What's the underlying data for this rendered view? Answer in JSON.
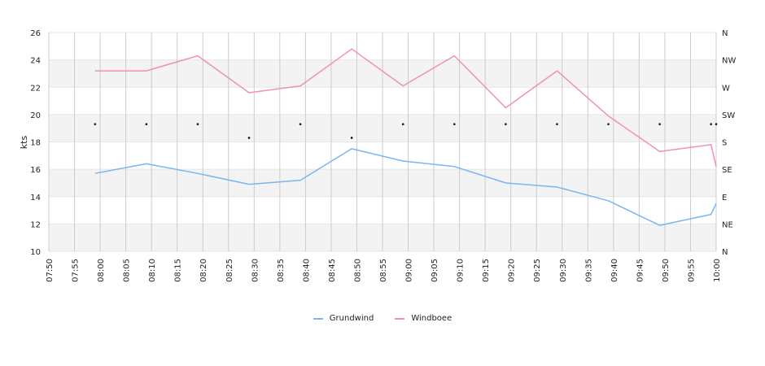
{
  "chart_data": {
    "type": "line",
    "title": "",
    "ylabel": "kts",
    "ylim": [
      10,
      26
    ],
    "y_ticks": [
      "10",
      "12",
      "14",
      "16",
      "18",
      "20",
      "22",
      "24",
      "26"
    ],
    "y2_ticks": [
      "N",
      "NE",
      "E",
      "SE",
      "S",
      "SW",
      "W",
      "NW",
      "N"
    ],
    "x_ticks": [
      "07:50",
      "07:55",
      "08:00",
      "08:05",
      "08:10",
      "08:15",
      "08:20",
      "08:25",
      "08:30",
      "08:35",
      "08:40",
      "08:45",
      "08:50",
      "08:55",
      "09:00",
      "09:05",
      "09:10",
      "09:15",
      "09:20",
      "09:25",
      "09:30",
      "09:35",
      "09:40",
      "09:45",
      "09:50",
      "09:55",
      "10:00"
    ],
    "x_range": [
      "07:50",
      "10:00"
    ],
    "grid": true,
    "legend_position": "bottom",
    "series": [
      {
        "name": "Grundwind",
        "color": "#7cb5ec",
        "x": [
          "07:59",
          "08:09",
          "08:19",
          "08:29",
          "08:39",
          "08:49",
          "08:59",
          "09:09",
          "09:19",
          "09:29",
          "09:39",
          "09:49",
          "09:59",
          "10:00"
        ],
        "values": [
          15.7,
          16.4,
          15.7,
          14.9,
          15.2,
          17.5,
          16.6,
          16.2,
          15.0,
          14.7,
          13.7,
          11.9,
          12.7,
          13.5
        ]
      },
      {
        "name": "Windboee",
        "color": "#f08fbe",
        "x": [
          "07:59",
          "08:09",
          "08:19",
          "08:29",
          "08:39",
          "08:49",
          "08:59",
          "09:09",
          "09:19",
          "09:29",
          "09:39",
          "09:49",
          "09:59",
          "10:00"
        ],
        "values": [
          23.2,
          23.2,
          24.3,
          21.6,
          22.1,
          24.8,
          22.1,
          24.3,
          20.5,
          23.2,
          19.9,
          17.3,
          17.8,
          16.2
        ]
      }
    ],
    "direction_markers": {
      "x": [
        "07:59",
        "08:09",
        "08:19",
        "08:29",
        "08:39",
        "08:49",
        "08:59",
        "09:09",
        "09:19",
        "09:29",
        "09:39",
        "09:49",
        "09:59",
        "10:00"
      ],
      "values": [
        19.3,
        19.3,
        19.3,
        18.3,
        19.3,
        18.3,
        19.3,
        19.3,
        19.3,
        19.3,
        19.3,
        19.3,
        19.3,
        19.3
      ]
    }
  }
}
